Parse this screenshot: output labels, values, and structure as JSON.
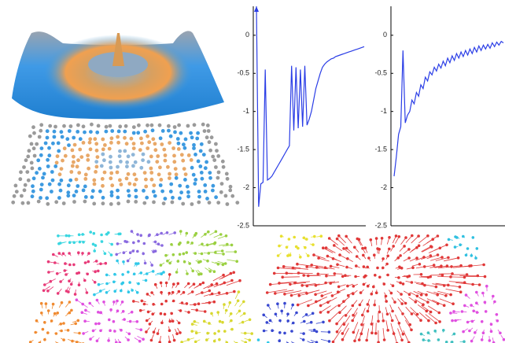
{
  "chart_data": [
    {
      "type": "line",
      "color": "#2b3ee6",
      "ylim": [
        -2.5,
        0.38
      ],
      "yticks": [
        0,
        -0.5,
        -1,
        -1.5,
        -2,
        -2.5
      ],
      "values": [
        0.38,
        -2.25,
        -1.95,
        -1.93,
        -0.45,
        -1.9,
        -1.88,
        -1.85,
        -1.8,
        -1.75,
        -1.7,
        -1.65,
        -1.6,
        -1.55,
        -1.5,
        -1.45,
        -0.4,
        -1.25,
        -0.42,
        -1.22,
        -0.45,
        -1.2,
        -0.4,
        -1.18,
        -1.1,
        -1.0,
        -0.85,
        -0.7,
        -0.6,
        -0.5,
        -0.42,
        -0.38,
        -0.35,
        -0.33,
        -0.31,
        -0.3,
        -0.28,
        -0.27,
        -0.26,
        -0.25,
        -0.24,
        -0.23,
        -0.22,
        -0.21,
        -0.2,
        -0.19,
        -0.18,
        -0.17,
        -0.16,
        -0.15
      ]
    },
    {
      "type": "line",
      "color": "#2b3ee6",
      "ylim": [
        -2.5,
        0.38
      ],
      "yticks": [
        0,
        -0.5,
        -1,
        -1.5,
        -2,
        -2.5
      ],
      "values": [
        -1.85,
        -1.6,
        -1.3,
        -1.2,
        -0.2,
        -1.15,
        -1.05,
        -1.0,
        -0.85,
        -0.9,
        -0.75,
        -0.8,
        -0.65,
        -0.7,
        -0.55,
        -0.6,
        -0.48,
        -0.52,
        -0.42,
        -0.47,
        -0.38,
        -0.43,
        -0.34,
        -0.4,
        -0.3,
        -0.36,
        -0.27,
        -0.33,
        -0.24,
        -0.3,
        -0.22,
        -0.28,
        -0.2,
        -0.26,
        -0.18,
        -0.24,
        -0.16,
        -0.22,
        -0.14,
        -0.2,
        -0.13,
        -0.18,
        -0.12,
        -0.17,
        -0.1,
        -0.15,
        -0.09,
        -0.13,
        -0.08,
        -0.1
      ]
    }
  ]
}
